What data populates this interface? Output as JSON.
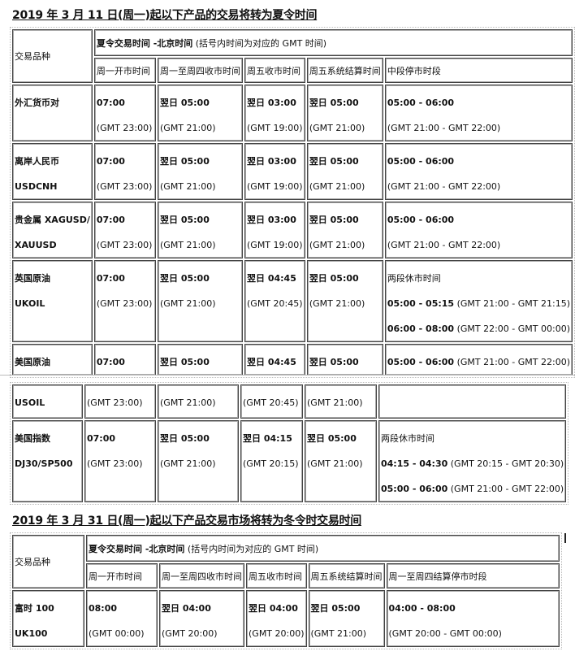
{
  "section1": {
    "heading": "2019 年 3 月 11 日(周一)起以下产品的交易将转为夏令时间",
    "header": {
      "product_col": "交易品种",
      "title_bold": "夏令交易时间  -北京时间",
      "title_note": " (括号内时间为对应的 GMT 时间)",
      "columns": [
        "周一开市时间",
        "周一至周四收市时间",
        "周五收市时间",
        "周五系统结算时间",
        "中段停市时段"
      ]
    },
    "rows": [
      {
        "product": [
          "外汇货币对"
        ],
        "cells": [
          [
            [
              {
                "t": "07:00",
                "b": true
              }
            ],
            [
              {
                "t": "(GMT 23:00)"
              }
            ]
          ],
          [
            [
              {
                "t": "翌日 05:00",
                "b": true
              }
            ],
            [
              {
                "t": "(GMT 21:00)"
              }
            ]
          ],
          [
            [
              {
                "t": "翌日 03:00",
                "b": true
              }
            ],
            [
              {
                "t": "(GMT 19:00)"
              }
            ]
          ],
          [
            [
              {
                "t": "翌日 05:00",
                "b": true
              }
            ],
            [
              {
                "t": "(GMT 21:00)"
              }
            ]
          ],
          [
            [
              {
                "t": "05:00 - 06:00",
                "b": true
              }
            ],
            [
              {
                "t": "(GMT 21:00 - GMT 22:00)"
              }
            ]
          ]
        ]
      },
      {
        "product": [
          "离岸人民币",
          "USDCNH"
        ],
        "cells": [
          [
            [
              {
                "t": "07:00",
                "b": true
              }
            ],
            [
              {
                "t": "(GMT 23:00)"
              }
            ]
          ],
          [
            [
              {
                "t": "翌日 05:00",
                "b": true
              }
            ],
            [
              {
                "t": " (GMT 21:00)"
              }
            ]
          ],
          [
            [
              {
                "t": "翌日 03:00",
                "b": true
              }
            ],
            [
              {
                "t": "(GMT 19:00)"
              }
            ]
          ],
          [
            [
              {
                "t": "翌日 05:00",
                "b": true
              }
            ],
            [
              {
                "t": "(GMT 21:00)"
              }
            ]
          ],
          [
            [
              {
                "t": "05:00 - 06:00",
                "b": true
              }
            ],
            [
              {
                "t": "(GMT 21:00 - GMT 22:00)"
              }
            ]
          ]
        ]
      },
      {
        "product": [
          "贵金属 XAGUSD/",
          "XAUUSD"
        ],
        "cells": [
          [
            [
              {
                "t": "07:00",
                "b": true
              }
            ],
            [
              {
                "t": "(GMT 23:00)"
              }
            ]
          ],
          [
            [
              {
                "t": "翌日 05:00",
                "b": true
              }
            ],
            [
              {
                "t": "(GMT 21:00)"
              }
            ]
          ],
          [
            [
              {
                "t": "翌日 03:00",
                "b": true
              }
            ],
            [
              {
                "t": "(GMT 19:00)"
              }
            ]
          ],
          [
            [
              {
                "t": "翌日 05:00",
                "b": true
              }
            ],
            [
              {
                "t": "(GMT 21:00)"
              }
            ]
          ],
          [
            [
              {
                "t": "05:00 - 06:00",
                "b": true
              }
            ],
            [
              {
                "t": "(GMT 21:00 - GMT 22:00)"
              }
            ]
          ]
        ]
      },
      {
        "product": [
          "英国原油",
          "UKOIL"
        ],
        "cells": [
          [
            [
              {
                "t": "07:00",
                "b": true
              }
            ],
            [
              {
                "t": "(GMT 23:00)"
              }
            ]
          ],
          [
            [
              {
                "t": "翌日 05:00",
                "b": true
              }
            ],
            [
              {
                "t": "(GMT 21:00)"
              }
            ]
          ],
          [
            [
              {
                "t": "翌日 04:45",
                "b": true
              }
            ],
            [
              {
                "t": "(GMT 20:45)"
              }
            ]
          ],
          [
            [
              {
                "t": "翌日 05:00",
                "b": true
              }
            ],
            [
              {
                "t": "(GMT 21:00)"
              }
            ]
          ],
          [
            [
              {
                "t": "两段休市时间"
              }
            ],
            [
              {
                "t": "05:00 - 05:15",
                "b": true
              },
              {
                "t": " (GMT 21:00 - GMT 21:15)"
              }
            ],
            [
              {
                "t": "06:00 - 08:00",
                "b": true
              },
              {
                "t": " (GMT 22:00 - GMT 00:00)"
              }
            ]
          ]
        ]
      },
      {
        "product": [
          "美国原油"
        ],
        "cells": [
          [
            [
              {
                "t": "07:00",
                "b": true
              }
            ]
          ],
          [
            [
              {
                "t": "翌日 05:00",
                "b": true
              }
            ]
          ],
          [
            [
              {
                "t": "翌日 04:45",
                "b": true
              }
            ]
          ],
          [
            [
              {
                "t": "翌日 05:00",
                "b": true
              }
            ]
          ],
          [
            [
              {
                "t": "05:00 - 06:00",
                "b": true
              },
              {
                "t": " (GMT 21:00 - GMT 22:00)"
              }
            ]
          ]
        ]
      }
    ],
    "rows_continued": [
      {
        "product": [
          "USOIL"
        ],
        "cells": [
          [
            [
              {
                "t": "(GMT 23:00)"
              }
            ]
          ],
          [
            [
              {
                "t": "(GMT 21:00)"
              }
            ]
          ],
          [
            [
              {
                "t": "(GMT 20:45)"
              }
            ]
          ],
          [
            [
              {
                "t": "(GMT 21:00)"
              }
            ]
          ],
          []
        ]
      },
      {
        "product": [
          "美国指数",
          "DJ30/SP500"
        ],
        "cells": [
          [
            [
              {
                "t": "07:00",
                "b": true
              }
            ],
            [
              {
                "t": "(GMT 23:00)"
              }
            ]
          ],
          [
            [
              {
                "t": "翌日 05:00",
                "b": true
              }
            ],
            [
              {
                "t": "(GMT 21:00)"
              }
            ]
          ],
          [
            [
              {
                "t": "翌日 04:15",
                "b": true
              }
            ],
            [
              {
                "t": "(GMT 20:15)"
              }
            ]
          ],
          [
            [
              {
                "t": "翌日 05:00",
                "b": true
              }
            ],
            [
              {
                "t": "(GMT 21:00)"
              }
            ]
          ],
          [
            [
              {
                "t": "两段休市时间"
              }
            ],
            [
              {
                "t": "04:15 - 04:30",
                "b": true
              },
              {
                "t": " (GMT 20:15 - GMT 20:30)"
              }
            ],
            [
              {
                "t": "05:00 - 06:00",
                "b": true
              },
              {
                "t": " (GMT 21:00 - GMT 22:00)"
              }
            ]
          ]
        ]
      }
    ]
  },
  "section2": {
    "heading": "2019 年 3 月 31 日(周一)起以下产品交易市场将转为冬令时交易时间",
    "header": {
      "product_col": "交易品种",
      "title_bold": "夏令交易时间  -北京时间",
      "title_note": " (括号内时间为对应的 GMT 时间)",
      "columns": [
        "周一开市时间",
        "周一至周四收市时间",
        "周五收市时间",
        "周五系统结算时间",
        "周一至周四结算停市时段"
      ]
    },
    "rows": [
      {
        "product": [
          "富时 100",
          "UK100"
        ],
        "cells": [
          [
            [
              {
                "t": "08:00",
                "b": true
              }
            ],
            [
              {
                "t": "(GMT 00:00)"
              }
            ]
          ],
          [
            [
              {
                "t": "翌日 04:00",
                "b": true
              }
            ],
            [
              {
                "t": "(GMT 20:00)"
              }
            ]
          ],
          [
            [
              {
                "t": "翌日 04:00",
                "b": true
              }
            ],
            [
              {
                "t": "(GMT 20:00)"
              }
            ]
          ],
          [
            [
              {
                "t": "翌日 05:00",
                "b": true
              }
            ],
            [
              {
                "t": "(GMT 21:00)"
              }
            ]
          ],
          [
            [
              {
                "t": "04:00 - 08:00",
                "b": true
              }
            ],
            [
              {
                "t": "(GMT 20:00 - GMT 00:00)"
              }
            ]
          ]
        ]
      }
    ]
  }
}
